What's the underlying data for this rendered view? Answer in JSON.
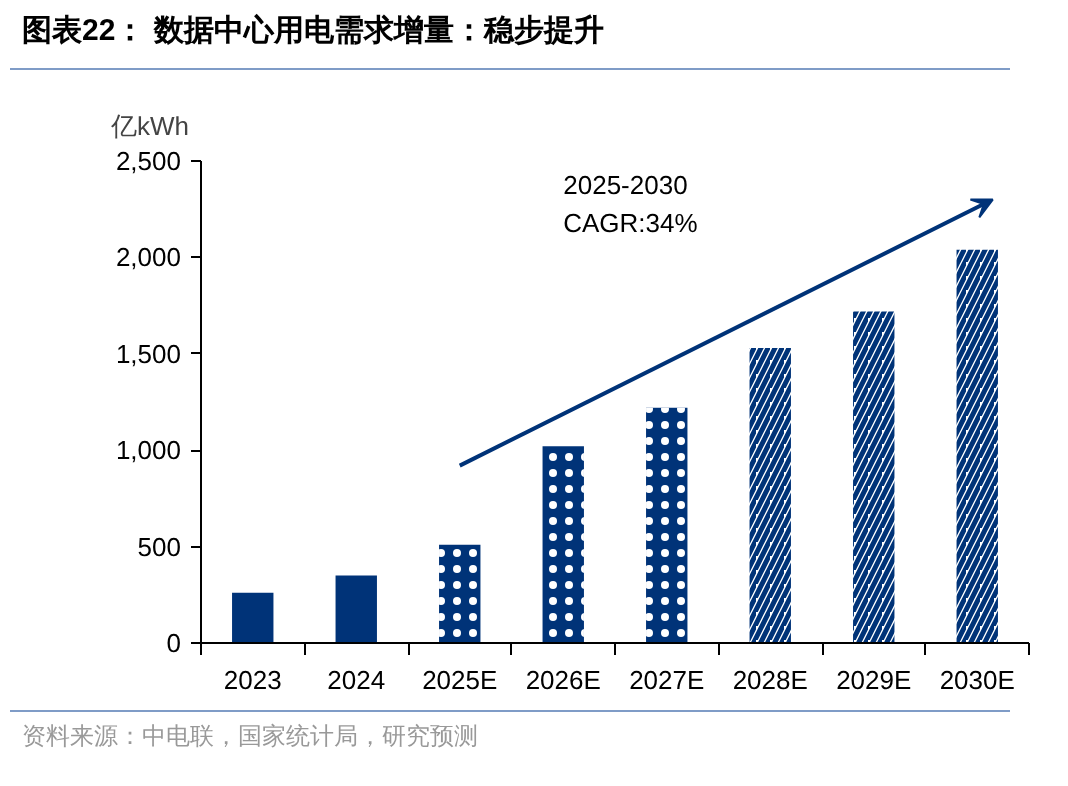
{
  "chart_data": {
    "type": "bar",
    "title": "图表22：  数据中心用电需求增量：稳步提升",
    "ylabel": "亿kWh",
    "categories": [
      "2023",
      "2024",
      "2025E",
      "2026E",
      "2027E",
      "2028E",
      "2029E",
      "2030E"
    ],
    "series": [
      {
        "color": "#003378",
        "values": [
          260,
          350,
          null,
          null,
          null,
          null,
          null,
          null
        ]
      },
      {
        "color": "#003378",
        "values": [
          null,
          null,
          510,
          1020,
          1220,
          null,
          null,
          null
        ]
      },
      {
        "color": "#003378",
        "values": [
          null,
          null,
          null,
          null,
          null,
          1530,
          1720,
          2040
        ]
      }
    ],
    "ylim": [
      0,
      2500
    ],
    "yticks": [
      0,
      500,
      {
        "value": 1000,
        "label": "1,000"
      },
      {
        "value": 1500,
        "label": "1,500"
      },
      {
        "value": 2000,
        "label": "2,000"
      },
      {
        "value": 2500,
        "label": "2,500"
      }
    ],
    "grid": false,
    "annotations": [
      "2025-2030\nCAGR:34%",
      "资料来源：中电联，国家统计局，研究预测"
    ]
  }
}
